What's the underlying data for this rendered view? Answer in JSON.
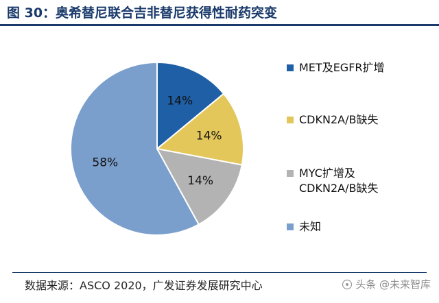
{
  "header": {
    "title": "图 30：奥希替尼联合吉非替尼获得性耐药突变"
  },
  "chart_data": {
    "type": "pie",
    "title": "图 30：奥希替尼联合吉非替尼获得性耐药突变",
    "slices": [
      {
        "label": "MET及EGFR扩增",
        "value": 14,
        "display": "14%",
        "color": "#1f5fa6"
      },
      {
        "label": "CDKN2A/B缺失",
        "value": 14,
        "display": "14%",
        "color": "#e3c75a"
      },
      {
        "label": "MYC扩增及\nCDKN2A/B缺失",
        "value": 14,
        "display": "14%",
        "color": "#b3b3b3"
      },
      {
        "label": "未知",
        "value": 58,
        "display": "58%",
        "color": "#7b9fcc"
      }
    ],
    "legend_position": "right"
  },
  "footer": {
    "source": "数据来源：ASCO 2020，广发证券发展研究中心",
    "watermark": "头条 @未来智库"
  }
}
